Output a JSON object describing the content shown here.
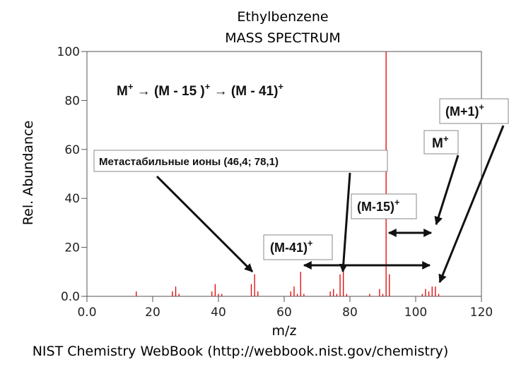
{
  "chart_data": {
    "type": "bar",
    "title": "Ethylbenzene",
    "subtitle": "MASS SPECTRUM",
    "x_label": "m/z",
    "y_label": "Rel. Abundance",
    "source": "NIST Chemistry WebBook (http://webbook.nist.gov/chemistry)",
    "color": "#e00000",
    "x": [
      15,
      26,
      27,
      28,
      38,
      39,
      40,
      41,
      50,
      51,
      52,
      62,
      63,
      64,
      65,
      66,
      74,
      75,
      76,
      77,
      78,
      79,
      86,
      89,
      90,
      91,
      92,
      102,
      103,
      104,
      105,
      106,
      107
    ],
    "values": [
      2,
      2,
      4,
      1,
      2,
      5,
      1,
      1,
      5,
      9,
      2,
      2,
      4,
      1,
      10,
      1,
      2,
      3,
      1,
      9,
      10,
      1,
      1,
      3,
      1,
      100,
      9,
      1,
      3,
      2,
      4,
      4,
      1
    ],
    "xlim": [
      0,
      120
    ],
    "ylim": [
      0,
      100
    ],
    "xticks": [
      {
        "value": 0,
        "label": "0.0"
      },
      20,
      40,
      60,
      80,
      100,
      120
    ],
    "yticks": [
      {
        "value": 0,
        "label": "0.0"
      },
      20,
      40,
      60,
      80,
      100
    ],
    "scheme": [
      {
        "text": "M",
        "sup": "+"
      },
      {
        "text": " → (M - 15 )",
        "sup": "+"
      },
      {
        "text": " → (M - 41)",
        "sup": "+"
      }
    ],
    "annotations": [
      {
        "text": "Метастабильные ионы (46,4;  78,1)"
      },
      {
        "text": "(M+1)",
        "sup": "+"
      },
      {
        "text": "M",
        "sup": "+"
      },
      {
        "text": "(M-15)",
        "sup": "+"
      },
      {
        "text": "(M-41)",
        "sup": "+"
      }
    ]
  }
}
